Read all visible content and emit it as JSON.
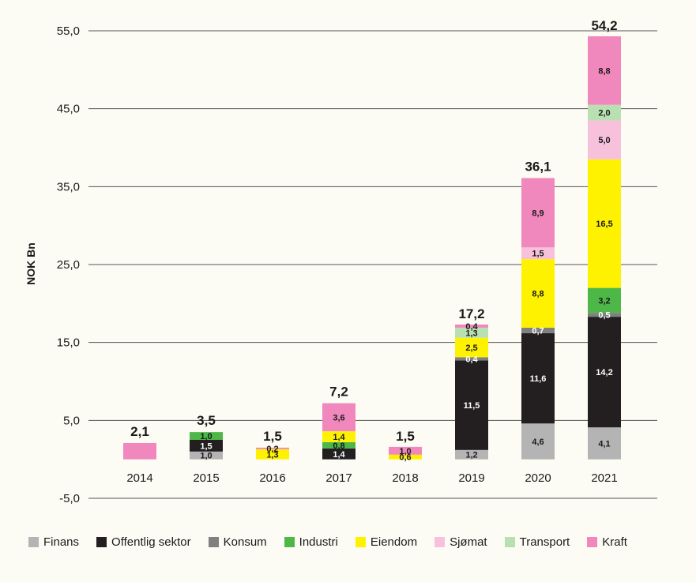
{
  "chart_data": {
    "type": "bar",
    "stacked": true,
    "title": "",
    "xlabel": "",
    "ylabel": "NOK Bn",
    "ylim": [
      -5,
      55
    ],
    "yticks": [
      -5,
      5,
      15,
      25,
      35,
      45,
      55
    ],
    "ytick_labels": [
      "-5,0",
      "5,0",
      "15,0",
      "25,0",
      "35,0",
      "45,0",
      "55,0"
    ],
    "grid": true,
    "legend_position": "bottom",
    "categories": [
      "2014",
      "2015",
      "2016",
      "2017",
      "2018",
      "2019",
      "2020",
      "2021"
    ],
    "totals": [
      2.1,
      3.5,
      1.5,
      7.2,
      1.5,
      17.2,
      36.1,
      54.2
    ],
    "total_labels": [
      "2,1",
      "3,5",
      "1,5",
      "7,2",
      "1,5",
      "17,2",
      "36,1",
      "54,2"
    ],
    "series": [
      {
        "name": "Finans",
        "color": "#b4b4b4",
        "values": [
          0,
          1.0,
          0,
          0,
          0,
          1.2,
          4.6,
          4.1
        ],
        "labels": [
          "",
          "1,0",
          "",
          "",
          "",
          "1,2",
          "4,6",
          "4,1"
        ]
      },
      {
        "name": "Offentlig sektor",
        "color": "#231f20",
        "values": [
          0,
          1.5,
          0,
          1.4,
          0,
          11.5,
          11.6,
          14.2
        ],
        "labels": [
          "",
          "1,5",
          "",
          "1,4",
          "",
          "11,5",
          "11,6",
          "14,2"
        ]
      },
      {
        "name": "Konsum",
        "color": "#808080",
        "values": [
          0,
          0,
          0,
          0,
          0,
          0.4,
          0.7,
          0.5
        ],
        "labels": [
          "",
          "",
          "",
          "",
          "",
          "0,4",
          "0,7",
          "0,5"
        ]
      },
      {
        "name": "Industri",
        "color": "#4db848",
        "values": [
          0,
          1.0,
          0,
          0.8,
          0,
          0,
          0,
          3.2
        ],
        "labels": [
          "",
          "1,0",
          "",
          "0,8",
          "",
          "",
          "",
          "3,2"
        ]
      },
      {
        "name": "Eiendom",
        "color": "#fff200",
        "values": [
          0,
          0,
          1.3,
          1.4,
          0.6,
          2.5,
          8.8,
          16.5
        ],
        "labels": [
          "",
          "",
          "1,3",
          "1,4",
          "0,6",
          "2,5",
          "8,8",
          "16,5"
        ]
      },
      {
        "name": "Sjømat",
        "color": "#f7c1dc",
        "values": [
          0,
          0,
          0,
          0,
          0,
          0,
          1.5,
          5.0
        ],
        "labels": [
          "",
          "",
          "",
          "",
          "",
          "",
          "1,5",
          "5,0"
        ]
      },
      {
        "name": "Transport",
        "color": "#b9e0b0",
        "values": [
          0,
          0,
          0,
          0,
          0,
          1.3,
          0,
          2.0
        ],
        "labels": [
          "",
          "",
          "",
          "",
          "",
          "1,3",
          "",
          "2,0"
        ]
      },
      {
        "name": "Kraft",
        "color": "#f088be",
        "values": [
          2.1,
          0,
          0.2,
          3.6,
          1.0,
          0.4,
          8.9,
          8.8
        ],
        "labels": [
          "",
          "",
          "0,2",
          "3,6",
          "1,0",
          "0,4",
          "8,9",
          "8,8"
        ]
      }
    ]
  }
}
